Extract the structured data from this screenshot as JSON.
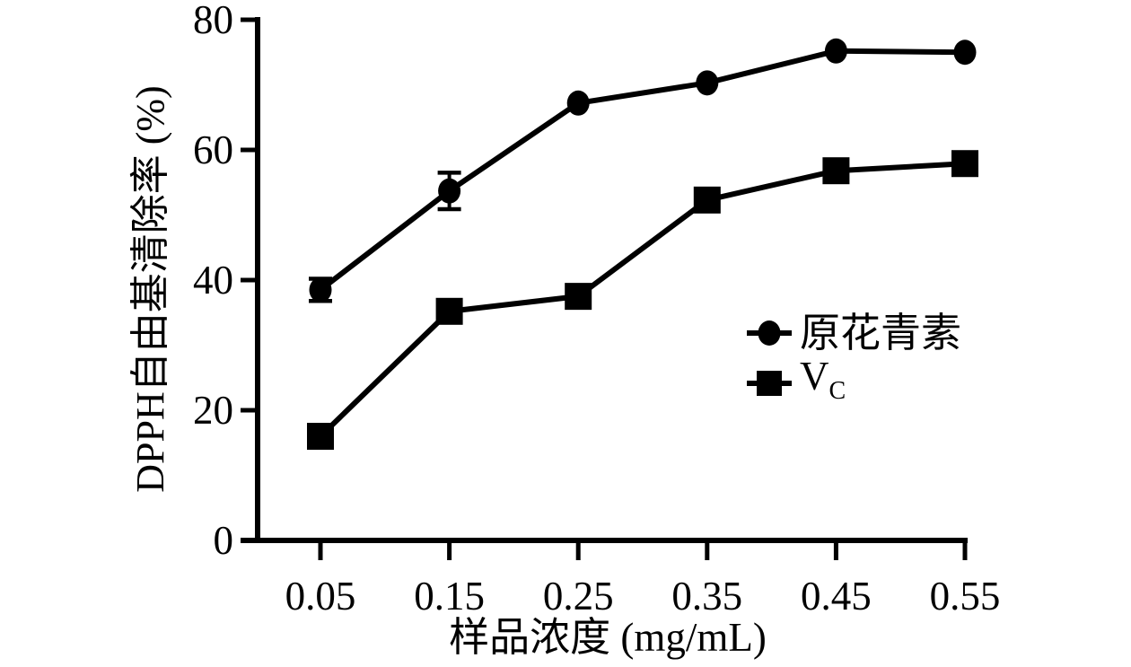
{
  "figure": {
    "background": "#ffffff",
    "ink_color": "#000000"
  },
  "chart_data": {
    "type": "line",
    "title": "",
    "x": [
      0.05,
      0.15,
      0.25,
      0.35,
      0.45,
      0.55
    ],
    "x_tick_labels": [
      "0.05",
      "0.15",
      "0.25",
      "0.35",
      "0.45",
      "0.55"
    ],
    "xlabel": "样品浓度 (mg/mL)",
    "ylabel": "DPPH自由基清除率 (%)",
    "ylim": [
      0,
      80
    ],
    "yticks": [
      0,
      20,
      40,
      60,
      80
    ],
    "grid": false,
    "legend": {
      "position": "inside-right-middle",
      "entries": [
        {
          "label": "原花青素",
          "marker": "filled-circle"
        },
        {
          "label": "VC",
          "label_main": "V",
          "label_sub": "C",
          "marker": "filled-square"
        }
      ]
    },
    "series": [
      {
        "name": "原花青素",
        "marker": "circle",
        "color": "#000000",
        "values": [
          38.5,
          53.7,
          67.2,
          70.3,
          75.2,
          75.0
        ],
        "errors": [
          1.7,
          2.8,
          0,
          0,
          0,
          0
        ]
      },
      {
        "name": "VC",
        "marker": "square",
        "color": "#000000",
        "values": [
          16.0,
          35.2,
          37.5,
          52.3,
          56.8,
          57.9
        ],
        "errors": [
          0,
          0,
          0,
          0,
          0,
          0
        ]
      }
    ]
  }
}
